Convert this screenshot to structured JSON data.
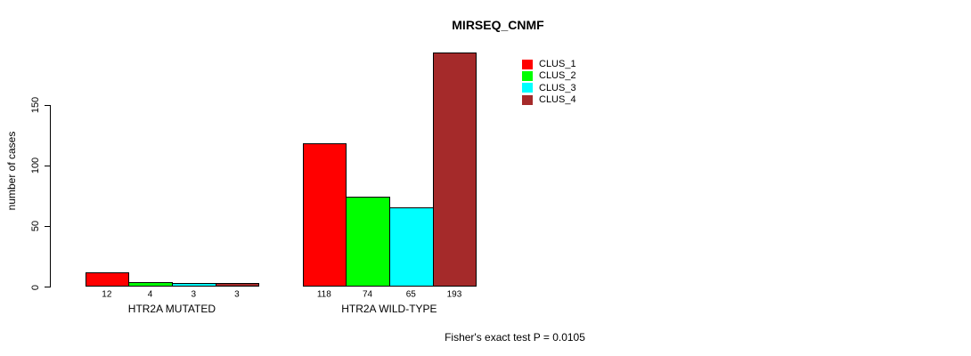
{
  "chart_data": {
    "type": "bar",
    "title": "MIRSEQ_CNMF",
    "ylabel": "number of cases",
    "xlabel": "",
    "ylim": [
      0,
      150
    ],
    "yticks": [
      0,
      50,
      100,
      150
    ],
    "grid": false,
    "legend_position": "top-right",
    "categories": [
      "HTR2A MUTATED",
      "HTR2A WILD-TYPE"
    ],
    "series": [
      {
        "name": "CLUS_1",
        "color": "#ff0000",
        "values": [
          12,
          118
        ]
      },
      {
        "name": "CLUS_2",
        "color": "#00ff00",
        "values": [
          4,
          74
        ]
      },
      {
        "name": "CLUS_3",
        "color": "#00ffff",
        "values": [
          3,
          65
        ]
      },
      {
        "name": "CLUS_4",
        "color": "#a52a2a",
        "values": [
          3,
          193
        ]
      }
    ],
    "bar_labels": [
      [
        "12",
        "4",
        "3",
        "3"
      ],
      [
        "118",
        "74",
        "65",
        "193"
      ]
    ],
    "annotation": "Fisher's exact test P = 0.0105"
  },
  "colors": {
    "background": "#ffffff",
    "axis": "#000000",
    "text": "#000000"
  }
}
